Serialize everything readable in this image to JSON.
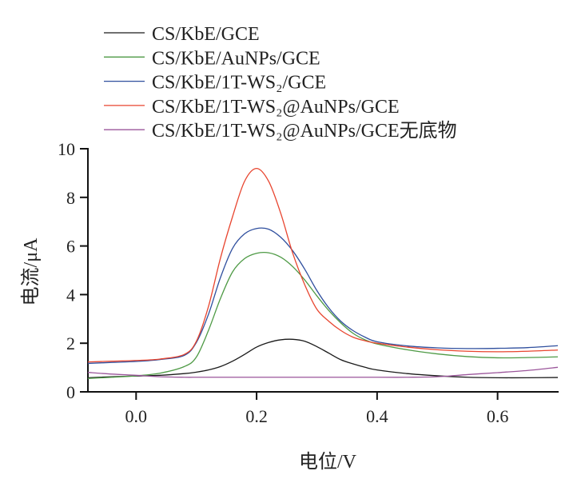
{
  "chart_data": {
    "type": "line",
    "xlabel": "电位/V",
    "ylabel": "电流/μA",
    "xlim": [
      -0.08,
      0.7
    ],
    "ylim": [
      0,
      10
    ],
    "xticks": [
      "0.0",
      "0.2",
      "0.4",
      "0.6"
    ],
    "xtick_values": [
      0.0,
      0.2,
      0.4,
      0.6
    ],
    "yticks": [
      "0",
      "2",
      "4",
      "6",
      "8",
      "10"
    ],
    "ytick_values": [
      0,
      2,
      4,
      6,
      8,
      10
    ],
    "grid": false,
    "legend_position": "top-left",
    "x": [
      -0.08,
      -0.04,
      0.0,
      0.04,
      0.08,
      0.1,
      0.12,
      0.14,
      0.16,
      0.18,
      0.2,
      0.22,
      0.24,
      0.26,
      0.28,
      0.3,
      0.32,
      0.34,
      0.36,
      0.38,
      0.4,
      0.45,
      0.5,
      0.55,
      0.6,
      0.65,
      0.7
    ],
    "series": [
      {
        "name": "CS/KbE/GCE",
        "color": "#1a1a1a",
        "values": [
          0.58,
          0.62,
          0.65,
          0.68,
          0.75,
          0.81,
          0.9,
          1.04,
          1.26,
          1.54,
          1.84,
          2.03,
          2.14,
          2.16,
          2.08,
          1.86,
          1.59,
          1.32,
          1.15,
          1.01,
          0.9,
          0.75,
          0.66,
          0.6,
          0.58,
          0.58,
          0.59
        ]
      },
      {
        "name": "CS/KbE/AuNPs/GCE",
        "color": "#4e9a45",
        "values": [
          0.55,
          0.6,
          0.66,
          0.77,
          1.04,
          1.43,
          2.52,
          3.84,
          4.93,
          5.48,
          5.7,
          5.72,
          5.54,
          5.15,
          4.6,
          3.95,
          3.34,
          2.83,
          2.41,
          2.14,
          1.97,
          1.73,
          1.56,
          1.45,
          1.4,
          1.41,
          1.44
        ]
      },
      {
        "name": "CS/KbE/1T-WS₂/GCE",
        "color": "#2f4f9e",
        "values": [
          1.17,
          1.21,
          1.25,
          1.33,
          1.5,
          2.03,
          3.18,
          4.7,
          5.9,
          6.5,
          6.72,
          6.69,
          6.36,
          5.8,
          5.04,
          4.17,
          3.45,
          2.9,
          2.52,
          2.25,
          2.06,
          1.89,
          1.81,
          1.78,
          1.79,
          1.82,
          1.9
        ]
      },
      {
        "name": "CS/KbE/1T-WS₂@AuNPs/GCE",
        "color": "#e8452f",
        "values": [
          1.23,
          1.26,
          1.29,
          1.35,
          1.54,
          2.08,
          3.5,
          5.5,
          7.2,
          8.66,
          9.19,
          8.66,
          7.35,
          5.7,
          4.4,
          3.4,
          2.9,
          2.52,
          2.25,
          2.1,
          2.0,
          1.84,
          1.73,
          1.67,
          1.65,
          1.67,
          1.72
        ]
      },
      {
        "name": "CS/KbE/1T-WS₂@AuNPs/GCE无底物",
        "color": "#9b569b",
        "values": [
          0.8,
          0.73,
          0.68,
          0.62,
          0.6,
          0.6,
          0.6,
          0.6,
          0.6,
          0.6,
          0.6,
          0.6,
          0.6,
          0.6,
          0.6,
          0.6,
          0.6,
          0.6,
          0.6,
          0.6,
          0.6,
          0.6,
          0.62,
          0.71,
          0.79,
          0.88,
          1.01
        ]
      }
    ]
  }
}
